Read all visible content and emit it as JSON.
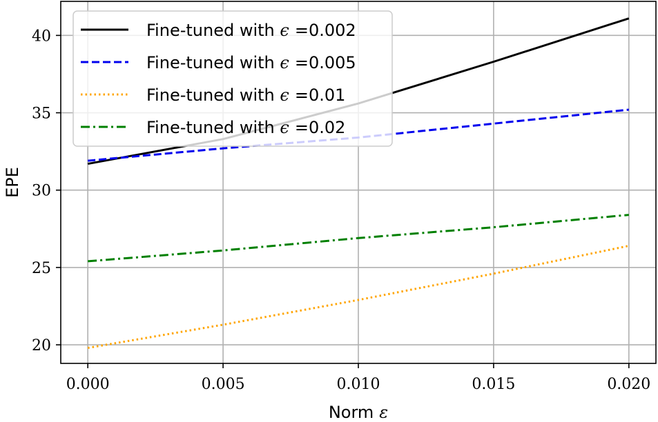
{
  "chart_data": {
    "type": "line",
    "xlabel": "Norm",
    "xlabel_symbol": "ε",
    "ylabel": "EPE",
    "xlim": [
      -0.001,
      0.021
    ],
    "ylim": [
      18.8,
      42.2
    ],
    "xticks": [
      0.0,
      0.005,
      0.01,
      0.015,
      0.02
    ],
    "xtick_labels": [
      "0.000",
      "0.005",
      "0.010",
      "0.015",
      "0.020"
    ],
    "yticks": [
      20,
      25,
      30,
      35,
      40
    ],
    "ytick_labels": [
      "20",
      "25",
      "30",
      "35",
      "40"
    ],
    "grid": true,
    "legend_position": "top-left",
    "x": [
      0.0,
      0.005,
      0.01,
      0.015,
      0.02
    ],
    "series": [
      {
        "name": "Fine-tuned with",
        "eps_symbol": "ϵ",
        "eps_value": "=0.002",
        "values": [
          31.7,
          33.3,
          35.6,
          38.3,
          41.1
        ],
        "color": "#000000",
        "dash": "solid"
      },
      {
        "name": "Fine-tuned with",
        "eps_symbol": "ϵ",
        "eps_value": "=0.005",
        "values": [
          31.9,
          32.7,
          33.4,
          34.3,
          35.2
        ],
        "color": "#0000ee",
        "dash": "dashed"
      },
      {
        "name": "Fine-tuned with",
        "eps_symbol": "ϵ",
        "eps_value": "=0.01",
        "values": [
          19.8,
          21.3,
          22.9,
          24.6,
          26.4
        ],
        "color": "#ffa500",
        "dash": "dotted"
      },
      {
        "name": "Fine-tuned with",
        "eps_symbol": "ϵ",
        "eps_value": "=0.02",
        "values": [
          25.4,
          26.1,
          26.9,
          27.6,
          28.4
        ],
        "color": "#008000",
        "dash": "dashdot"
      }
    ]
  }
}
